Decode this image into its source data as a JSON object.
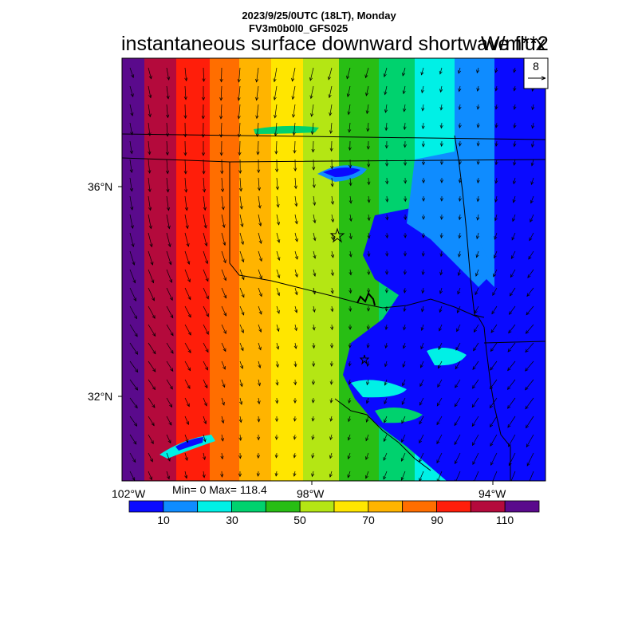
{
  "header": {
    "datetime": "2023/9/25/0UTC (18LT), Monday",
    "model": "FV3m0b0l0_GFS025",
    "variable": "instantaneous surface downward shortwave flux",
    "units": "W/m**2"
  },
  "map": {
    "lat_labels": [
      "36°N",
      "32°N"
    ],
    "lon_labels": [
      "102°W",
      "98°W",
      "94°W"
    ],
    "stats": "Min= 0 Max= 118.4",
    "ref_vector_label": "8"
  },
  "colorbar": {
    "colors": [
      "#0a0aff",
      "#0f8cff",
      "#00f0e6",
      "#00d26e",
      "#28be14",
      "#b4e614",
      "#ffe600",
      "#ffb400",
      "#ff6e00",
      "#ff1e0a",
      "#b40a3c",
      "#5a0a8c"
    ],
    "tick_labels": [
      "10",
      "30",
      "50",
      "70",
      "90",
      "110"
    ]
  }
}
